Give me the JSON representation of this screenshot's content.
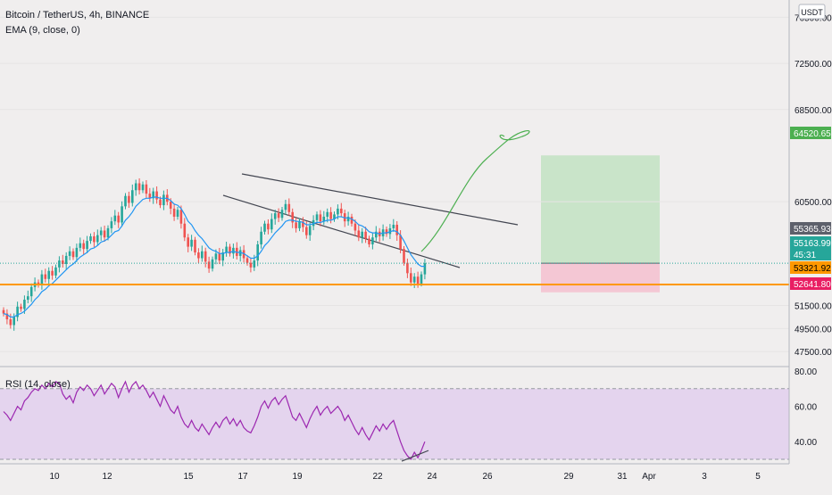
{
  "header": {
    "symbol_title": "Bitcoin / TetherUS, 4h, BINANCE",
    "ema_label": "EMA (9, close, 0)",
    "currency": "USDT"
  },
  "price_axis": {
    "ticks": [
      "76500.00",
      "72500.00",
      "68500.00",
      "60500.00",
      "51500.00",
      "49500.00",
      "47500.00"
    ],
    "tick_values": [
      76500,
      72500,
      68500,
      60500,
      51500,
      49500,
      47500
    ]
  },
  "price_tags": [
    {
      "label": "64520.65",
      "bg": "#4caf50",
      "fg": "#ffffff"
    },
    {
      "label": "55365.93",
      "bg": "#5d606b",
      "fg": "#ffffff"
    },
    {
      "label": "55163.99",
      "bg": "#26a69a",
      "fg": "#ffffff"
    },
    {
      "label": "45:31",
      "bg": "#26a69a",
      "fg": "#ffffff"
    },
    {
      "label": "53321.92",
      "bg": "#ff9800",
      "fg": "#000000"
    },
    {
      "label": "52641.80",
      "bg": "#e91e63",
      "fg": "#ffffff"
    }
  ],
  "rsi_panel": {
    "label": "RSI (14, close)",
    "ticks": [
      "80.00",
      "60.00",
      "40.00"
    ],
    "tick_values": [
      80,
      60,
      40
    ],
    "band": [
      30,
      70
    ]
  },
  "time_axis": {
    "labels": [
      "10",
      "12",
      "15",
      "17",
      "19",
      "22",
      "24",
      "26",
      "29",
      "31",
      "Apr",
      "3",
      "5"
    ]
  },
  "colors": {
    "background": "#f0eeee",
    "up": "#26a69a",
    "down": "#ef5350",
    "ema": "#2196f3",
    "support": "#ff9800",
    "rsi_line": "#9c27b0",
    "rsi_band": "#e4d4ee",
    "target_zone": "#c9e4c9",
    "stop_zone": "#f4c7d4",
    "drawing": "#4caf50",
    "trendline": "#434651"
  },
  "chart_data": {
    "type": "candlestick",
    "title": "Bitcoin / TetherUS, 4h, BINANCE",
    "y_range": [
      46200,
      78000
    ],
    "support_level": 53321.92,
    "long_position": {
      "entry": 55163.99,
      "target": 64520.65,
      "stop": 52641.8
    },
    "last_price": 55163.99,
    "closes": [
      50800,
      50300,
      49800,
      50500,
      51400,
      51200,
      52000,
      52300,
      53100,
      53500,
      53300,
      54200,
      53800,
      54500,
      54100,
      54800,
      55400,
      55100,
      55800,
      56200,
      55700,
      56500,
      56900,
      56400,
      57100,
      57500,
      57000,
      57600,
      58000,
      57400,
      58200,
      58800,
      59300,
      58700,
      60100,
      61000,
      60400,
      61500,
      62100,
      61500,
      62000,
      61200,
      60800,
      61400,
      60700,
      60200,
      61100,
      60500,
      59900,
      59200,
      59800,
      58600,
      57400,
      56600,
      57200,
      56100,
      55600,
      56200,
      55300,
      54700,
      55500,
      56000,
      55400,
      56100,
      56600,
      56000,
      56500,
      55800,
      56300,
      55600,
      55200,
      54800,
      55400,
      56800,
      57900,
      58600,
      58100,
      59000,
      59500,
      59100,
      59800,
      60300,
      59600,
      58700,
      58200,
      58800,
      58300,
      57600,
      58400,
      58900,
      59400,
      58800,
      59200,
      59600,
      59000,
      59400,
      59900,
      59500,
      58800,
      59200,
      58600,
      58000,
      57400,
      57900,
      57300,
      56800,
      57400,
      57900,
      57500,
      58100,
      57700,
      58200,
      58500,
      57600,
      56400,
      55200,
      54300,
      53500,
      54000,
      53400,
      54200,
      55163.99
    ],
    "ema": [
      50800,
      50700,
      50500,
      50500,
      50700,
      50800,
      51000,
      51300,
      51600,
      52000,
      52300,
      52700,
      52900,
      53200,
      53400,
      53700,
      54000,
      54300,
      54600,
      54900,
      55100,
      55400,
      55700,
      55900,
      56100,
      56400,
      56500,
      56700,
      57000,
      57100,
      57300,
      57600,
      57900,
      58000,
      58400,
      58900,
      59200,
      59600,
      60100,
      60400,
      60700,
      60800,
      60800,
      60900,
      60900,
      60800,
      60800,
      60800,
      60600,
      60300,
      60200,
      59900,
      59400,
      58800,
      58500,
      58000,
      57600,
      57300,
      56900,
      56500,
      56300,
      56200,
      56000,
      56000,
      56100,
      56100,
      56200,
      56100,
      56100,
      56000,
      55800,
      55600,
      55600,
      55800,
      56200,
      56700,
      57000,
      57400,
      57800,
      58100,
      58400,
      58800,
      58900,
      58900,
      58800,
      58800,
      58700,
      58500,
      58500,
      58600,
      58700,
      58700,
      58800,
      58900,
      58900,
      59000,
      59200,
      59200,
      59100,
      59100,
      59000,
      58800,
      58500,
      58400,
      58200,
      57900,
      57800,
      57800,
      57700,
      57800,
      57800,
      57900,
      58000,
      57900,
      57600,
      57100,
      56500,
      55900,
      55500,
      55100,
      54900,
      54900
    ],
    "rsi": [
      57,
      55,
      52,
      56,
      60,
      58,
      63,
      65,
      68,
      70,
      69,
      72,
      70,
      73,
      71,
      74,
      73,
      67,
      64,
      66,
      62,
      68,
      71,
      69,
      72,
      70,
      66,
      69,
      72,
      67,
      70,
      73,
      71,
      65,
      70,
      74,
      68,
      72,
      74,
      70,
      72,
      69,
      65,
      68,
      64,
      60,
      66,
      62,
      58,
      56,
      60,
      54,
      50,
      48,
      52,
      48,
      46,
      50,
      47,
      44,
      48,
      51,
      48,
      52,
      54,
      50,
      53,
      49,
      52,
      48,
      46,
      45,
      49,
      54,
      60,
      63,
      59,
      63,
      65,
      61,
      64,
      66,
      60,
      54,
      52,
      56,
      52,
      48,
      53,
      57,
      60,
      55,
      58,
      60,
      56,
      58,
      60,
      57,
      52,
      55,
      51,
      47,
      44,
      48,
      44,
      41,
      45,
      49,
      46,
      50,
      47,
      50,
      52,
      46,
      40,
      35,
      32,
      30,
      34,
      31,
      35,
      40
    ],
    "rsi_range": [
      28,
      82
    ]
  }
}
